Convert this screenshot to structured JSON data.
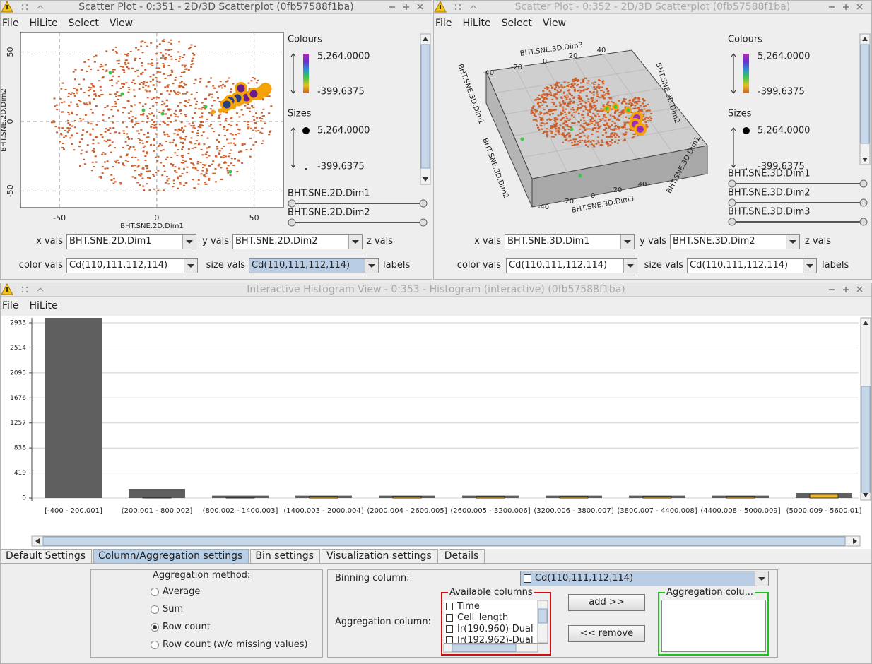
{
  "scatter_left": {
    "title": "Scatter Plot - 0:351 - 2D/3D Scatterplot (0fb57588f1ba)",
    "menu": [
      "File",
      "HiLite",
      "Select",
      "View"
    ],
    "x_label": "BHT.SNE.2D.Dim1",
    "y_label": "BHT.SNE.2D.Dim2",
    "xlim": [
      -70,
      65
    ],
    "ylim": [
      -62,
      64
    ],
    "xticks": [
      -50,
      0,
      50
    ],
    "yticks": [
      -50,
      0,
      50
    ],
    "legend": {
      "colours_title": "Colours",
      "colour_max": "5,264.0000",
      "colour_min": "-399.6375",
      "sizes_title": "Sizes",
      "size_max": "5,264.0000",
      "size_min": "-399.6375"
    },
    "sliders": [
      "BHT.SNE.2D.Dim1",
      "BHT.SNE.2D.Dim2"
    ],
    "controls": {
      "x_label": "x vals",
      "x_value": "BHT.SNE.2D.Dim1",
      "y_label": "y vals",
      "y_value": "BHT.SNE.2D.Dim2",
      "z_label": "z vals",
      "color_label": "color vals",
      "color_value": "Cd(110,111,112,114)",
      "size_label": "size vals",
      "size_value": "Cd(110,111,112,114)",
      "labels_label": "labels"
    }
  },
  "scatter_right": {
    "title": "Scatter Plot - 0:352 - 2D/3D Scatterplot (0fb57588f1ba)",
    "menu": [
      "File",
      "HiLite",
      "Select",
      "View"
    ],
    "top_axis_label": "BHT.SNE.3D.Dim3",
    "top_ticks": [
      -40,
      -20,
      0,
      20,
      40
    ],
    "bottom_axis_label": "BHT.SNE.3D.Dim3",
    "bottom_ticks": [
      -40,
      -20,
      0,
      20,
      40
    ],
    "left_axis_label": "BHT.SNE.3D.Dim1",
    "left_lower_label": "BHT.SNE.3D.Dim2",
    "right_axis_label": "BHT.SNE.3D.Dim2",
    "right_lower_label": "BHT.SNE.3D.Dim1",
    "legend": {
      "colours_title": "Colours",
      "colour_max": "5,264.0000",
      "colour_min": "-399.6375",
      "sizes_title": "Sizes",
      "size_max": "5,264.0000",
      "size_min": "-399.6375"
    },
    "sliders": [
      "BHT.SNE.3D.Dim1",
      "BHT.SNE.3D.Dim2",
      "BHT.SNE.3D.Dim3"
    ],
    "controls": {
      "x_label": "x vals",
      "x_value": "BHT.SNE.3D.Dim1",
      "y_label": "y vals",
      "y_value": "BHT.SNE.3D.Dim2",
      "z_label": "z vals",
      "color_label": "color vals",
      "color_value": "Cd(110,111,112,114)",
      "size_label": "size vals",
      "size_value": "Cd(110,111,112,114)",
      "labels_label": "labels"
    }
  },
  "histogram_window": {
    "title": "Interactive Histogram View - 0:353 - Histogram (interactive) (0fb57588f1ba)",
    "menu": [
      "File",
      "HiLite"
    ],
    "tabs": [
      "Default Settings",
      "Column/Aggregation settings",
      "Bin settings",
      "Visualization settings",
      "Details"
    ],
    "active_tab": 1,
    "aggregation_method_title": "Aggregation method:",
    "methods": [
      "Average",
      "Sum",
      "Row count",
      "Row count (w/o missing values)"
    ],
    "selected_method": 2,
    "binning_label": "Binning column:",
    "binning_value": "Cd(110,111,112,114)",
    "aggregation_label": "Aggregation column:",
    "available_title": "Available columns",
    "available": [
      "Time",
      "Cell_length",
      "Ir(190.960)-Dual",
      "Ir(192.962)-Dual"
    ],
    "add_button": "add >>",
    "remove_button": "<< remove",
    "aggregation_columns_title": "Aggregation colu..."
  },
  "chart_data": {
    "type": "bar",
    "categories": [
      "[-400 - 200.001]",
      "(200.001 - 800.002]",
      "(800.002 - 1400.003]",
      "(1400.003 - 2000.004]",
      "(2000.004 - 2600.005]",
      "(2600.005 - 3200.006]",
      "(3200.006 - 3800.007]",
      "(3800.007 - 4400.008]",
      "(4400.008 - 5000.009]",
      "(5000.009 - 5600.01]"
    ],
    "series": [
      {
        "color": "#5f5f5f",
        "values": [
          3016,
          154,
          40,
          40,
          40,
          40,
          40,
          40,
          40,
          83
        ]
      },
      {
        "color": "#f8b416",
        "values": [
          0,
          5,
          10,
          30,
          30,
          30,
          30,
          30,
          30,
          60
        ]
      }
    ],
    "ylim": [
      0,
      3016
    ],
    "yticks": [
      0,
      419,
      838,
      1257,
      1676,
      2095,
      2514,
      2933
    ],
    "grid": true
  }
}
